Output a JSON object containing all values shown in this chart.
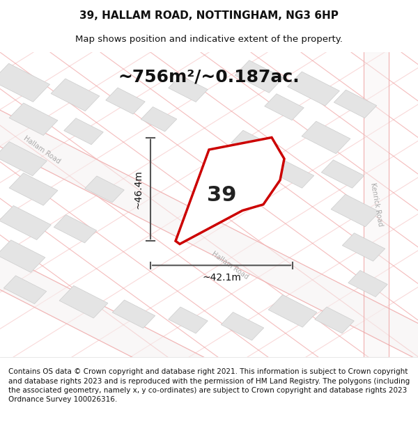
{
  "title": "39, HALLAM ROAD, NOTTINGHAM, NG3 6HP",
  "subtitle": "Map shows position and indicative extent of the property.",
  "area_label": "~756m²/~0.187ac.",
  "property_number": "39",
  "width_label": "~42.1m",
  "height_label": "~46.4m",
  "footer": "Contains OS data © Crown copyright and database right 2021. This information is subject to Crown copyright and database rights 2023 and is reproduced with the permission of HM Land Registry. The polygons (including the associated geometry, namely x, y co-ordinates) are subject to Crown copyright and database rights 2023 Ordnance Survey 100026316.",
  "bg_color": "#f8f8f8",
  "map_bg": "#ffffff",
  "footer_bg": "#ffffff",
  "title_fontsize": 11,
  "subtitle_fontsize": 9.5,
  "area_fontsize": 18,
  "property_fontsize": 22,
  "label_fontsize": 10,
  "footer_fontsize": 7.5,
  "road_color_light": "#f0a0a0",
  "building_color": "#e0e0e0",
  "building_edge": "#cccccc",
  "road_label_color": "#aaaaaa",
  "property_outline_color": "#cc0000",
  "property_fill": "#ffffff",
  "dimension_line_color": "#555555"
}
